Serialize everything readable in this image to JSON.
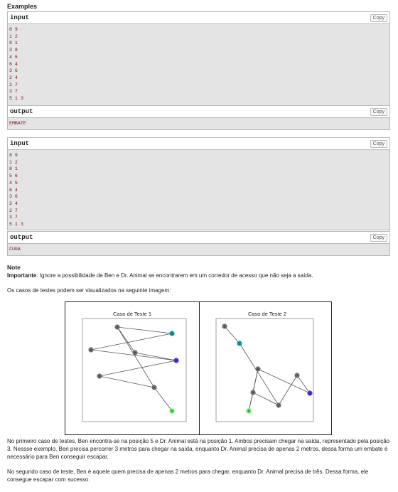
{
  "heading": "Examples",
  "copy_label": "Copy",
  "examples": [
    {
      "input_label": "input",
      "input_lines": [
        "8 9",
        "1 2",
        "8 1",
        "3 8",
        "4 5",
        "6 4",
        "3 6",
        "2 4",
        "2 7",
        "3 7",
        "5 1 3"
      ],
      "output_label": "output",
      "output_lines": [
        "EMBATE"
      ]
    },
    {
      "input_label": "input",
      "input_lines": [
        "8 9",
        "1 2",
        "8 1",
        "5 6",
        "4 5",
        "6 4",
        "3 6",
        "2 4",
        "2 7",
        "3 7",
        "5 1 3"
      ],
      "output_label": "output",
      "output_lines": [
        "FUGA"
      ]
    }
  ],
  "note": {
    "title": "Note",
    "important_label": "Importante",
    "important_text": ": Ignore a possibilidade de Ben e Dr. Animal se encontrarem em um corredor de acesso que não seja a saída.",
    "intro": "Os casos de testes podem ser visualizados na seguinte imagem:",
    "para1": "No primeiro caso de testes, Ben encontra-se na posição 5 e Dr. Animal está na posição 1. Ambos precisam chegar na saída, representado pela posição 3. Nessse exemplo, Ben precisa percorrer 3 metros para chegar na saída, enquanto Dr. Animal precisa de apenas 2 metros, dessa forma um embate é necessário para Ben conseguir escapar.",
    "para2": "No segundo caso de teste, Ben é aquele quem precisa de apenas 2 metros para chegar, enquanto Dr. Animal precisa de três. Dessa forma, ele consegue escapar com sucesso."
  },
  "figure": {
    "colors": {
      "default": "#6e6e6e",
      "start": "#55ee55",
      "exit": "#4433dd",
      "animal": "#119999"
    },
    "panels": [
      {
        "title": "Caso de Teste 1",
        "nodes": [
          {
            "id": "1",
            "role": "animal"
          },
          {
            "id": "2",
            "role": "default"
          },
          {
            "id": "3",
            "role": "exit"
          },
          {
            "id": "4",
            "role": "default"
          },
          {
            "id": "5",
            "role": "start"
          },
          {
            "id": "6",
            "role": "default"
          },
          {
            "id": "7",
            "role": "default"
          },
          {
            "id": "8",
            "role": "default"
          }
        ],
        "edges": [
          [
            "1",
            "2"
          ],
          [
            "8",
            "1"
          ],
          [
            "3",
            "8"
          ],
          [
            "4",
            "5"
          ],
          [
            "6",
            "4"
          ],
          [
            "3",
            "6"
          ],
          [
            "2",
            "4"
          ],
          [
            "2",
            "7"
          ],
          [
            "3",
            "7"
          ]
        ]
      },
      {
        "title": "Caso de Teste 2",
        "nodes": [
          {
            "id": "1",
            "role": "animal"
          },
          {
            "id": "2",
            "role": "default"
          },
          {
            "id": "3",
            "role": "exit"
          },
          {
            "id": "4",
            "role": "default"
          },
          {
            "id": "5",
            "role": "start"
          },
          {
            "id": "6",
            "role": "default"
          },
          {
            "id": "7",
            "role": "default"
          },
          {
            "id": "8",
            "role": "default"
          }
        ],
        "edges": [
          [
            "1",
            "2"
          ],
          [
            "8",
            "1"
          ],
          [
            "5",
            "6"
          ],
          [
            "4",
            "5"
          ],
          [
            "6",
            "4"
          ],
          [
            "3",
            "6"
          ],
          [
            "2",
            "4"
          ],
          [
            "2",
            "7"
          ],
          [
            "3",
            "7"
          ]
        ]
      }
    ]
  }
}
